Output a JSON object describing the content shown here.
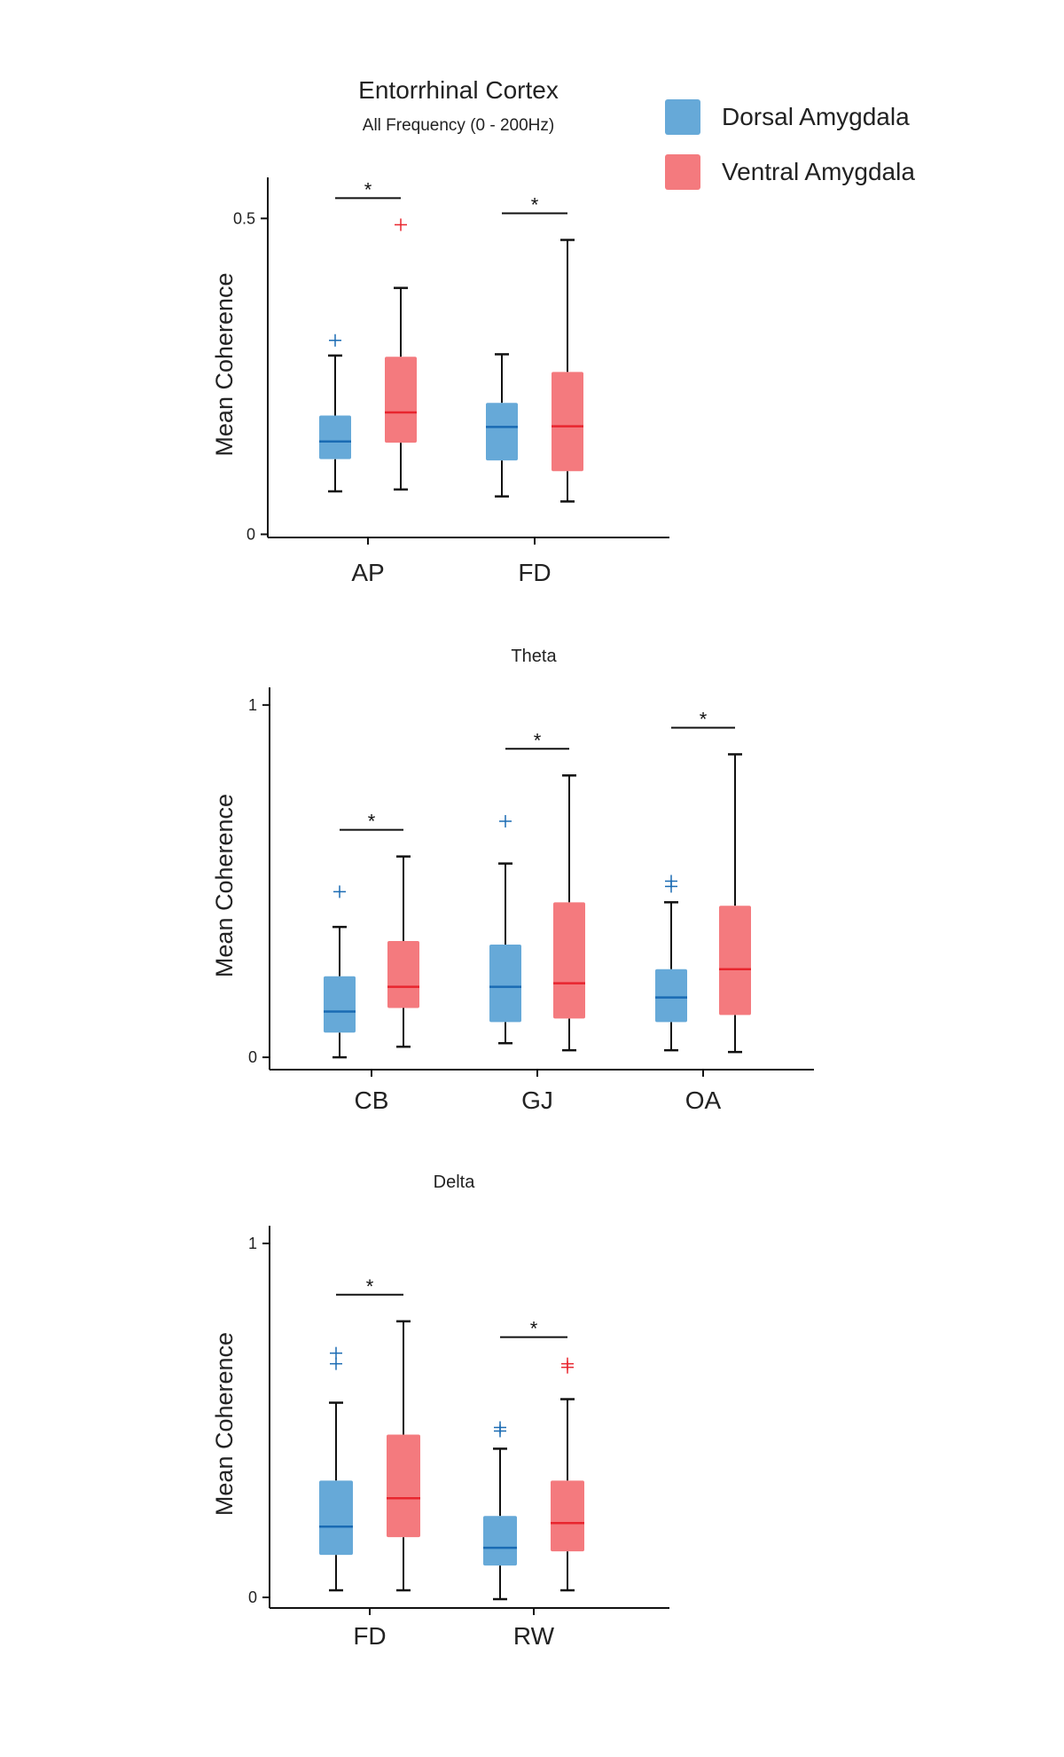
{
  "legend": {
    "dorsal_label": "Dorsal Amygdala",
    "ventral_label": "Ventral Amygdala",
    "dorsal_color": "#66A9D8",
    "ventral_color": "#F47A7E",
    "dorsal_median_color": "#1A6BB3",
    "ventral_median_color": "#E8252E"
  },
  "chart_data": [
    {
      "type": "box",
      "title": "Entorrhinal Cortex",
      "subtitle": "All Frequency (0 - 200Hz)",
      "ylabel": "Mean Coherence",
      "ylim": [
        -0.005,
        0.565
      ],
      "yticks": [
        0,
        0.5
      ],
      "ytick_labels": [
        "0",
        "0.5"
      ],
      "categories": [
        "AP",
        "FD"
      ],
      "significance": [
        "*",
        "*"
      ],
      "series": [
        {
          "name": "Dorsal Amygdala",
          "boxes": [
            {
              "whislo": 0.068,
              "q1": 0.119,
              "med": 0.147,
              "q3": 0.188,
              "whishi": 0.283,
              "fliers": [
                0.307
              ]
            },
            {
              "whislo": 0.06,
              "q1": 0.117,
              "med": 0.17,
              "q3": 0.208,
              "whishi": 0.285,
              "fliers": []
            }
          ]
        },
        {
          "name": "Ventral Amygdala",
          "boxes": [
            {
              "whislo": 0.071,
              "q1": 0.145,
              "med": 0.193,
              "q3": 0.281,
              "whishi": 0.39,
              "fliers": [
                0.49
              ]
            },
            {
              "whislo": 0.052,
              "q1": 0.1,
              "med": 0.171,
              "q3": 0.257,
              "whishi": 0.466,
              "fliers": []
            }
          ]
        }
      ]
    },
    {
      "type": "box",
      "title": "Theta",
      "ylabel": "Mean Coherence",
      "ylim": [
        -0.035,
        1.05
      ],
      "yticks": [
        0,
        1
      ],
      "ytick_labels": [
        "0",
        "1"
      ],
      "categories": [
        "CB",
        "GJ",
        "OA"
      ],
      "significance": [
        "*",
        "*",
        "*"
      ],
      "series": [
        {
          "name": "Dorsal Amygdala",
          "boxes": [
            {
              "whislo": 0.0,
              "q1": 0.07,
              "med": 0.13,
              "q3": 0.23,
              "whishi": 0.37,
              "fliers": [
                0.47
              ]
            },
            {
              "whislo": 0.04,
              "q1": 0.1,
              "med": 0.2,
              "q3": 0.32,
              "whishi": 0.55,
              "fliers": [
                0.67
              ]
            },
            {
              "whislo": 0.02,
              "q1": 0.1,
              "med": 0.17,
              "q3": 0.25,
              "whishi": 0.44,
              "fliers": [
                0.485,
                0.5
              ]
            }
          ]
        },
        {
          "name": "Ventral Amygdala",
          "boxes": [
            {
              "whislo": 0.03,
              "q1": 0.14,
              "med": 0.2,
              "q3": 0.33,
              "whishi": 0.57,
              "fliers": []
            },
            {
              "whislo": 0.02,
              "q1": 0.11,
              "med": 0.21,
              "q3": 0.44,
              "whishi": 0.8,
              "fliers": []
            },
            {
              "whislo": 0.015,
              "q1": 0.12,
              "med": 0.25,
              "q3": 0.43,
              "whishi": 0.86,
              "fliers": []
            }
          ]
        }
      ]
    },
    {
      "type": "box",
      "title": "Delta",
      "ylabel": "Mean Coherence",
      "ylim": [
        -0.03,
        1.05
      ],
      "yticks": [
        0,
        1
      ],
      "ytick_labels": [
        "0",
        "1"
      ],
      "categories": [
        "FD",
        "RW"
      ],
      "significance": [
        "*",
        "*"
      ],
      "series": [
        {
          "name": "Dorsal Amygdala",
          "boxes": [
            {
              "whislo": 0.02,
              "q1": 0.12,
              "med": 0.2,
              "q3": 0.33,
              "whishi": 0.55,
              "fliers": [
                0.66,
                0.69
              ]
            },
            {
              "whislo": -0.005,
              "q1": 0.09,
              "med": 0.14,
              "q3": 0.23,
              "whishi": 0.42,
              "fliers": [
                0.47,
                0.48
              ]
            }
          ]
        },
        {
          "name": "Ventral Amygdala",
          "boxes": [
            {
              "whislo": 0.02,
              "q1": 0.17,
              "med": 0.28,
              "q3": 0.46,
              "whishi": 0.78,
              "fliers": []
            },
            {
              "whislo": 0.02,
              "q1": 0.13,
              "med": 0.21,
              "q3": 0.33,
              "whishi": 0.56,
              "fliers": [
                0.65,
                0.66
              ]
            }
          ]
        }
      ]
    }
  ]
}
